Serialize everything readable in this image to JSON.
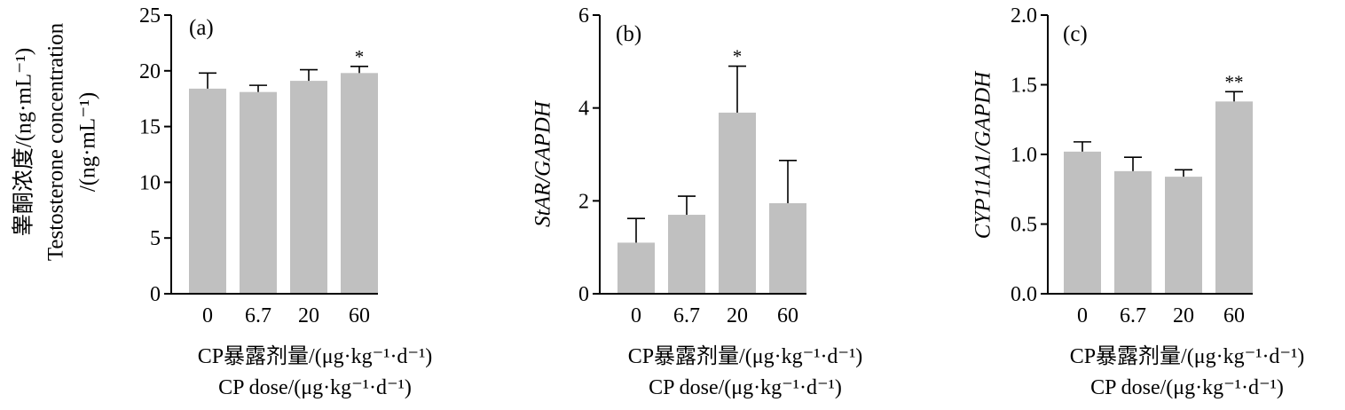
{
  "chart_data": [
    {
      "type": "bar",
      "panel": "(a)",
      "categories": [
        "0",
        "6.7",
        "20",
        "60"
      ],
      "values": [
        18.4,
        18.1,
        19.1,
        19.8
      ],
      "errors": [
        1.4,
        0.6,
        1.0,
        0.6
      ],
      "significance": [
        "",
        "",
        "",
        "*"
      ],
      "ylim": [
        0,
        25
      ],
      "yticks": [
        "0",
        "5",
        "10",
        "15",
        "20",
        "25"
      ],
      "ylabel_lines": [
        "睾酮浓度/(ng·mL⁻¹)",
        "Testosterone concentration",
        "/(ng·mL⁻¹)"
      ],
      "xlabel_lines": [
        "CP暴露剂量/(μg·kg⁻¹·d⁻¹)",
        "CP dose/(μg·kg⁻¹·d⁻¹)"
      ],
      "bar_color": "#c0c0c0",
      "grid": false
    },
    {
      "type": "bar",
      "panel": "(b)",
      "categories": [
        "0",
        "6.7",
        "20",
        "60"
      ],
      "values": [
        1.1,
        1.7,
        3.9,
        1.95
      ],
      "errors": [
        0.52,
        0.4,
        1.0,
        0.92
      ],
      "significance": [
        "",
        "",
        "*",
        ""
      ],
      "ylim": [
        0,
        6
      ],
      "yticks": [
        "0",
        "2",
        "4",
        "6"
      ],
      "ylabel_lines": [
        "StAR/GAPDH"
      ],
      "xlabel_lines": [
        "CP暴露剂量/(μg·kg⁻¹·d⁻¹)",
        "CP dose/(μg·kg⁻¹·d⁻¹)"
      ],
      "bar_color": "#c0c0c0",
      "grid": false
    },
    {
      "type": "bar",
      "panel": "(c)",
      "categories": [
        "0",
        "6.7",
        "20",
        "60"
      ],
      "values": [
        1.02,
        0.88,
        0.84,
        1.38
      ],
      "errors": [
        0.07,
        0.1,
        0.05,
        0.07
      ],
      "significance": [
        "",
        "",
        "",
        "**"
      ],
      "ylim": [
        0,
        2
      ],
      "yticks": [
        "0.0",
        "0.5",
        "1.0",
        "1.5",
        "2.0"
      ],
      "ylabel_lines": [
        "CYP11A1/GAPDH"
      ],
      "xlabel_lines": [
        "CP暴露剂量/(μg·kg⁻¹·d⁻¹)",
        "CP dose/(μg·kg⁻¹·d⁻¹)"
      ],
      "bar_color": "#c0c0c0",
      "grid": false
    }
  ]
}
